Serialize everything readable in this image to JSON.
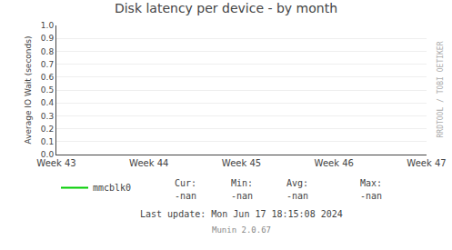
{
  "chart_data": {
    "type": "line",
    "title": "Disk latency per device - by month",
    "y_label": "Average IO Wait (seconds)",
    "categories": [
      "Week 43",
      "Week 44",
      "Week 45",
      "Week 46",
      "Week 47"
    ],
    "series": [
      {
        "name": "mmcblk0",
        "color": "#00cc00",
        "values": [
          null,
          null,
          null,
          null,
          null
        ]
      }
    ],
    "ylim": [
      0.0,
      1.0
    ],
    "yticks": [
      {
        "value": 0.0,
        "label": "0.0"
      },
      0.1,
      0.2,
      0.3,
      0.4,
      0.5,
      0.6,
      0.7,
      0.8,
      0.9,
      {
        "value": 1.0,
        "label": "1.0"
      }
    ],
    "grid": "y",
    "legend": "bottom left",
    "stats": [
      {
        "label": "Cur:",
        "text": "-nan"
      },
      {
        "label": "Min:",
        "text": "-nan"
      },
      {
        "label": "Avg:",
        "text": "-nan"
      },
      {
        "label": "Max:",
        "text": "-nan"
      }
    ],
    "annotations": [
      "Last update: Mon Jun 17 18:15:08 2024",
      "Munin 2.0.67",
      "RRDTOOL / TOBI OETIKER"
    ]
  }
}
